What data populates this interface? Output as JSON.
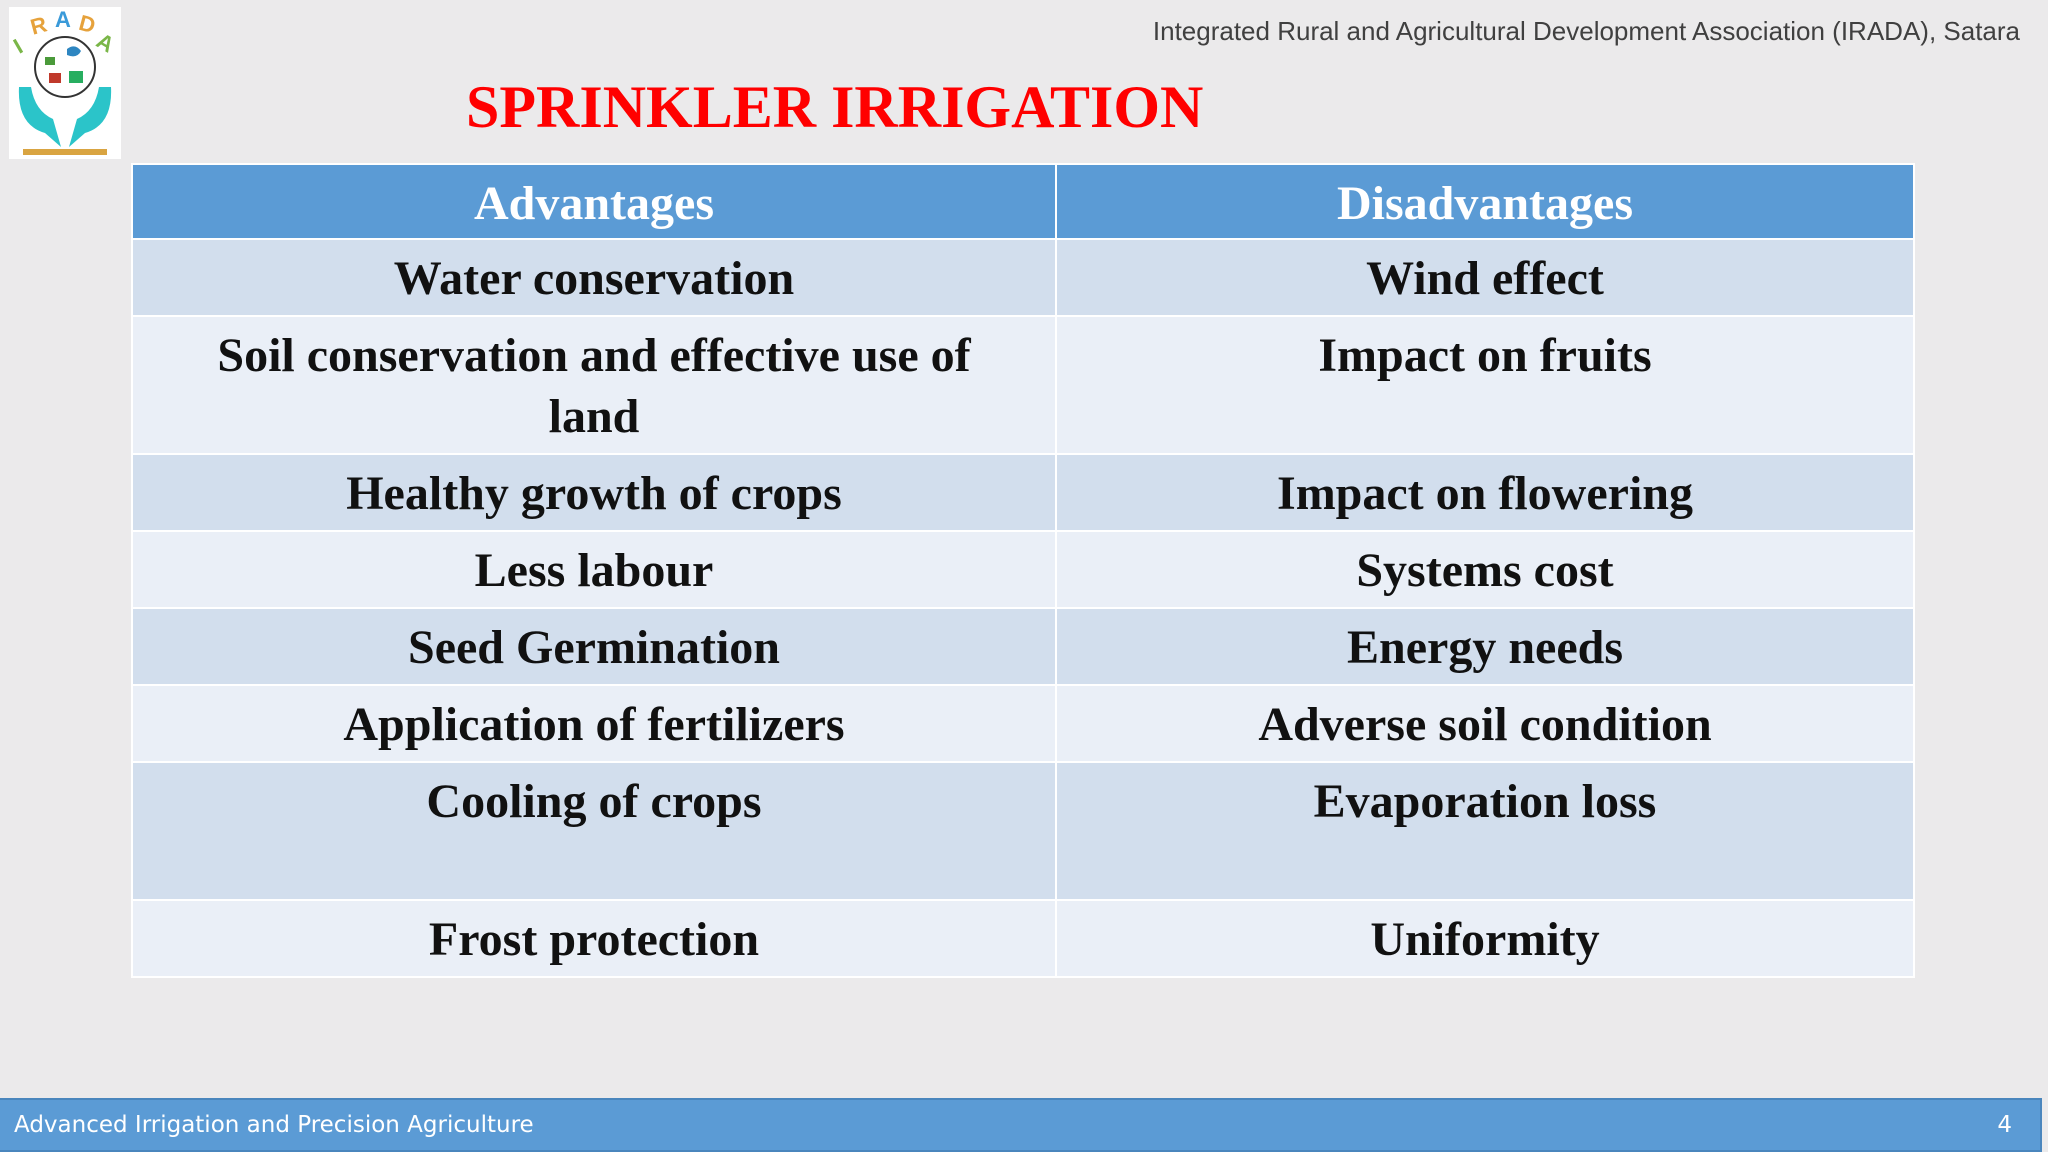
{
  "header": {
    "logo_text": "IRADA",
    "organization": "Integrated Rural and Agricultural Development Association (IRADA), Satara"
  },
  "slide": {
    "title": "SPRINKLER IRRIGATION"
  },
  "table": {
    "headers": [
      "Advantages",
      "Disadvantages"
    ],
    "rows": [
      [
        "Water conservation",
        "Wind effect"
      ],
      [
        "Soil conservation and effective use of land",
        "Impact on fruits"
      ],
      [
        "Healthy growth of crops",
        "Impact on flowering"
      ],
      [
        "Less labour",
        "Systems cost"
      ],
      [
        "Seed Germination",
        "Energy needs"
      ],
      [
        "Application of fertilizers",
        "Adverse soil condition"
      ],
      [
        "Cooling of crops",
        "Evaporation loss"
      ],
      [
        "Frost protection",
        "Uniformity"
      ]
    ]
  },
  "footer": {
    "course": "Advanced Irrigation and Precision Agriculture",
    "page_number": "4"
  },
  "colors": {
    "title": "#ff0000",
    "header_bg": "#5b9bd5",
    "row_dark": "#d2deed",
    "row_light": "#eaeff7",
    "footer_bg": "#5b9bd5"
  }
}
